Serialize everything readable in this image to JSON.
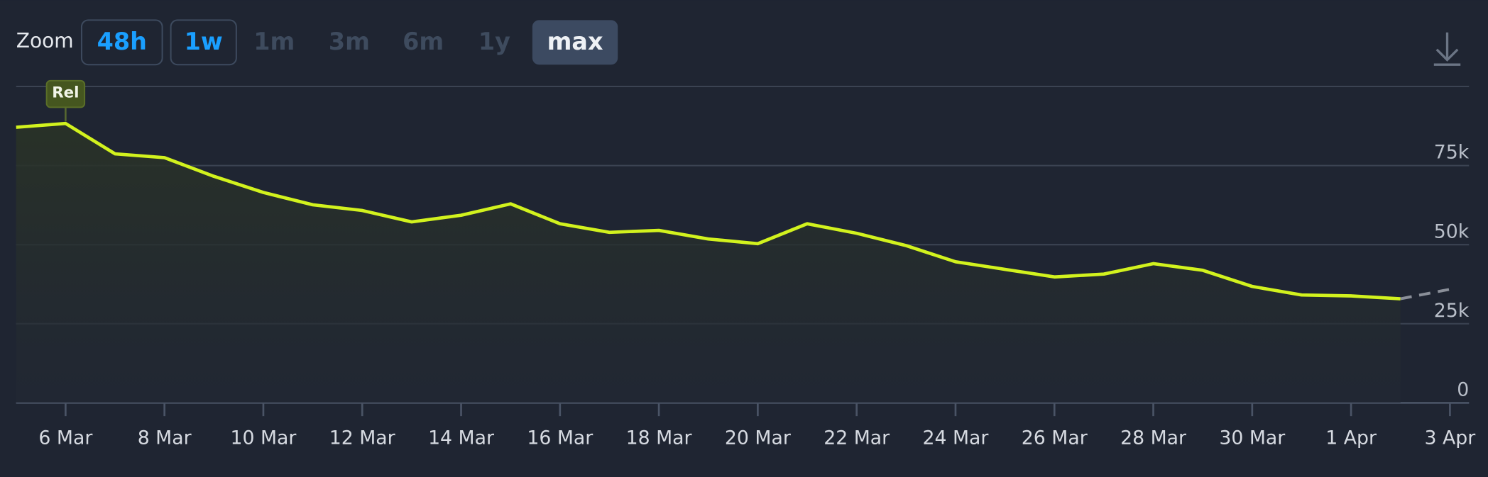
{
  "zoom": {
    "label": "Zoom",
    "options": [
      "48h",
      "1w",
      "1m",
      "3m",
      "6m",
      "1y",
      "max"
    ]
  },
  "chart_data": {
    "type": "line",
    "categories": [
      null,
      "6 Mar",
      null,
      "8 Mar",
      null,
      "10 Mar",
      null,
      "12 Mar",
      null,
      "14 Mar",
      null,
      "16 Mar",
      null,
      "18 Mar",
      null,
      "20 Mar",
      null,
      "22 Mar",
      null,
      "24 Mar",
      null,
      "26 Mar",
      null,
      "28 Mar",
      null,
      "30 Mar",
      null,
      "1 Apr",
      null,
      "3 Apr"
    ],
    "series": [
      {
        "color": "#d2f21e",
        "values": [
          87100,
          88300,
          78700,
          77500,
          71600,
          66500,
          62600,
          60800,
          57200,
          59300,
          62900,
          56600,
          53900,
          54500,
          51800,
          50300,
          56600,
          53600,
          49700,
          44600,
          42200,
          39800,
          40700,
          44000,
          41900,
          36800,
          34100,
          33800,
          32900,
          null
        ]
      },
      {
        "color": "#8a8f99",
        "dashed": true,
        "values": [
          null,
          null,
          null,
          null,
          null,
          null,
          null,
          null,
          null,
          null,
          null,
          null,
          null,
          null,
          null,
          null,
          null,
          null,
          null,
          null,
          null,
          null,
          null,
          null,
          null,
          null,
          null,
          null,
          32900,
          35900
        ]
      }
    ],
    "ylim": [
      0,
      100000
    ],
    "yticks": [
      0,
      {
        "value": 25000,
        "label": "25k"
      },
      {
        "value": 50000,
        "label": "50k"
      },
      {
        "value": 75000,
        "label": "75k"
      }
    ],
    "grid": true,
    "annotations": [
      {
        "text": "Rel",
        "x": "6 Mar"
      }
    ]
  }
}
